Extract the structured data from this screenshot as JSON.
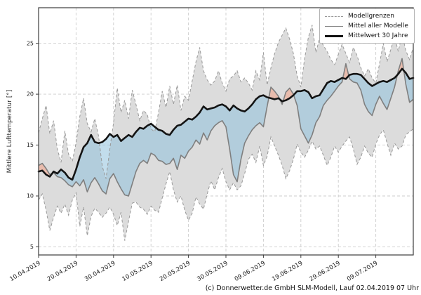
{
  "figure": {
    "caption": "(c) Donnerwetter.de GmbH SLM-Modell, Lauf 02.04.2019 07 Uhr"
  },
  "chart_data": {
    "type": "line",
    "title": "",
    "xlabel": "",
    "ylabel": "Mittlere Lufttemperatur [°]",
    "ylim": [
      4.2,
      28.5
    ],
    "grid": true,
    "legend_position": "upper right",
    "legend": [
      "Modellgrenzen",
      "Mittel aller Modelle",
      "Mittelwert 30 Jahre"
    ],
    "x_start_label": "10.04.2019",
    "x_step_days": 1,
    "x_range_days": [
      0,
      100
    ],
    "x_tick_days": [
      0,
      10,
      20,
      30,
      40,
      50,
      60,
      70,
      80,
      90
    ],
    "x_tick_labels": [
      "10.04.2019",
      "20.04.2019",
      "30.04.2019",
      "10.05.2019",
      "20.05.2019",
      "30.05.2019",
      "09.06.2019",
      "19.06.2019",
      "29.06.2019",
      "09.07.2019"
    ],
    "y_ticks": [
      5,
      10,
      15,
      20,
      25
    ],
    "colors": {
      "envelope_fill": "#dcdcdc",
      "envelope_line": "#999999",
      "ensemble_mean_line": "#7f7f7f",
      "climate_mean_line": "#141414",
      "below_normal_fill": "#8fc1dc",
      "above_normal_fill": "#f0a890",
      "grid": "#cccccc",
      "spine": "#3c3c3c"
    },
    "series": [
      {
        "name": "Modellgrenzen (obere Grenze)",
        "role": "upper_bound",
        "style": "dashed",
        "values": [
          16.2,
          17.6,
          18.9,
          16.1,
          17.4,
          14.6,
          13.3,
          16.4,
          14.1,
          13.4,
          15.2,
          17.8,
          19.6,
          17.1,
          16.3,
          17.6,
          15.9,
          12.9,
          11.7,
          14.6,
          17.2,
          20.6,
          18.2,
          19.4,
          17.6,
          20.4,
          19.0,
          17.4,
          18.4,
          18.0,
          16.6,
          16.3,
          18.2,
          20.3,
          18.7,
          20.8,
          19.0,
          20.9,
          18.4,
          19.8,
          19.4,
          21.3,
          23.2,
          24.6,
          22.3,
          21.4,
          20.9,
          21.3,
          22.3,
          21.1,
          20.3,
          21.5,
          21.8,
          22.3,
          21.2,
          21.6,
          21.1,
          20.4,
          22.3,
          21.4,
          24.1,
          20.9,
          22.6,
          24.0,
          25.1,
          25.8,
          26.5,
          25.4,
          24.0,
          21.8,
          20.7,
          23.5,
          25.6,
          26.8,
          24.1,
          25.5,
          24.8,
          24.2,
          23.4,
          22.9,
          23.9,
          24.9,
          24.0,
          23.1,
          24.6,
          23.8,
          22.6,
          21.8,
          22.5,
          21.6,
          21.1,
          23.0,
          25.0,
          23.2,
          24.4,
          25.7,
          24.2,
          25.9,
          24.3,
          23.4,
          24.6
        ]
      },
      {
        "name": "Modellgrenzen (untere Grenze)",
        "role": "lower_bound",
        "style": "dashed",
        "values": [
          9.6,
          10.2,
          8.6,
          6.6,
          7.9,
          9.0,
          8.3,
          9.2,
          8.1,
          9.6,
          10.3,
          7.0,
          8.9,
          6.1,
          8.0,
          8.8,
          8.4,
          7.9,
          8.3,
          8.9,
          8.2,
          7.1,
          8.4,
          5.6,
          7.5,
          9.3,
          9.4,
          8.9,
          8.7,
          8.2,
          9.0,
          8.6,
          8.4,
          9.8,
          11.2,
          12.4,
          10.6,
          9.4,
          10.0,
          8.6,
          7.6,
          8.3,
          9.9,
          9.2,
          8.7,
          10.2,
          11.5,
          10.6,
          11.8,
          12.7,
          11.4,
          10.6,
          11.3,
          10.6,
          11.0,
          12.2,
          13.6,
          14.1,
          13.3,
          14.9,
          13.0,
          13.9,
          15.8,
          14.9,
          14.0,
          13.0,
          11.7,
          12.5,
          13.6,
          15.1,
          14.3,
          13.8,
          14.5,
          15.4,
          14.6,
          14.9,
          14.0,
          13.0,
          13.8,
          14.9,
          14.3,
          14.9,
          15.4,
          15.8,
          14.6,
          13.1,
          13.8,
          14.9,
          14.2,
          13.8,
          15.1,
          16.0,
          16.5,
          15.2,
          14.0,
          15.2,
          14.6,
          14.9,
          16.0,
          16.3,
          16.6
        ]
      },
      {
        "name": "Mittel aller Modelle",
        "role": "ensemble_mean",
        "style": "solid",
        "values": [
          13.0,
          13.2,
          12.7,
          12.1,
          12.3,
          11.9,
          11.8,
          11.5,
          11.1,
          10.9,
          11.4,
          11.0,
          11.6,
          10.4,
          11.3,
          11.8,
          11.2,
          10.5,
          10.2,
          11.7,
          12.2,
          11.4,
          10.7,
          10.1,
          10.0,
          11.2,
          12.4,
          13.2,
          13.5,
          13.2,
          14.2,
          14.0,
          13.5,
          13.4,
          13.1,
          13.2,
          13.7,
          12.6,
          14.0,
          13.7,
          14.4,
          14.8,
          15.5,
          15.1,
          16.2,
          15.5,
          16.4,
          16.9,
          17.2,
          17.4,
          16.8,
          14.6,
          12.1,
          11.4,
          13.6,
          15.2,
          15.9,
          16.5,
          16.9,
          17.2,
          16.8,
          18.8,
          20.7,
          20.3,
          19.8,
          19.0,
          20.2,
          20.6,
          20.0,
          18.9,
          16.6,
          15.9,
          15.2,
          16.0,
          17.2,
          17.8,
          18.9,
          19.4,
          19.8,
          20.3,
          20.8,
          21.2,
          23.0,
          21.5,
          21.2,
          21.1,
          20.4,
          19.0,
          18.3,
          17.9,
          19.0,
          19.8,
          19.1,
          18.5,
          19.6,
          20.7,
          22.3,
          23.5,
          21.0,
          19.2,
          19.5
        ]
      },
      {
        "name": "Mittelwert 30 Jahre",
        "role": "climate_mean",
        "style": "solid-bold",
        "values": [
          12.4,
          12.5,
          12.1,
          11.9,
          12.4,
          12.2,
          12.6,
          12.3,
          11.8,
          11.6,
          12.6,
          13.8,
          14.8,
          15.2,
          16.0,
          15.3,
          15.2,
          15.3,
          15.6,
          16.1,
          15.8,
          16.0,
          15.4,
          15.7,
          16.0,
          15.8,
          16.3,
          16.7,
          16.6,
          16.9,
          17.1,
          16.8,
          16.5,
          16.4,
          16.1,
          16.0,
          16.5,
          16.9,
          17.0,
          17.3,
          17.6,
          17.5,
          17.8,
          18.2,
          18.8,
          18.5,
          18.6,
          18.7,
          18.9,
          19.0,
          18.8,
          18.4,
          18.9,
          18.6,
          18.4,
          18.3,
          18.6,
          19.0,
          19.5,
          19.8,
          19.9,
          19.7,
          19.6,
          19.5,
          19.6,
          19.3,
          19.4,
          19.6,
          19.9,
          20.3,
          20.3,
          20.4,
          20.2,
          19.6,
          19.8,
          19.9,
          20.5,
          21.1,
          21.3,
          21.2,
          21.4,
          21.6,
          21.5,
          21.9,
          22.0,
          22.0,
          21.9,
          21.5,
          21.1,
          20.8,
          21.0,
          21.2,
          21.3,
          21.2,
          21.4,
          21.6,
          22.0,
          22.5,
          22.1,
          21.5,
          21.6
        ]
      }
    ]
  }
}
